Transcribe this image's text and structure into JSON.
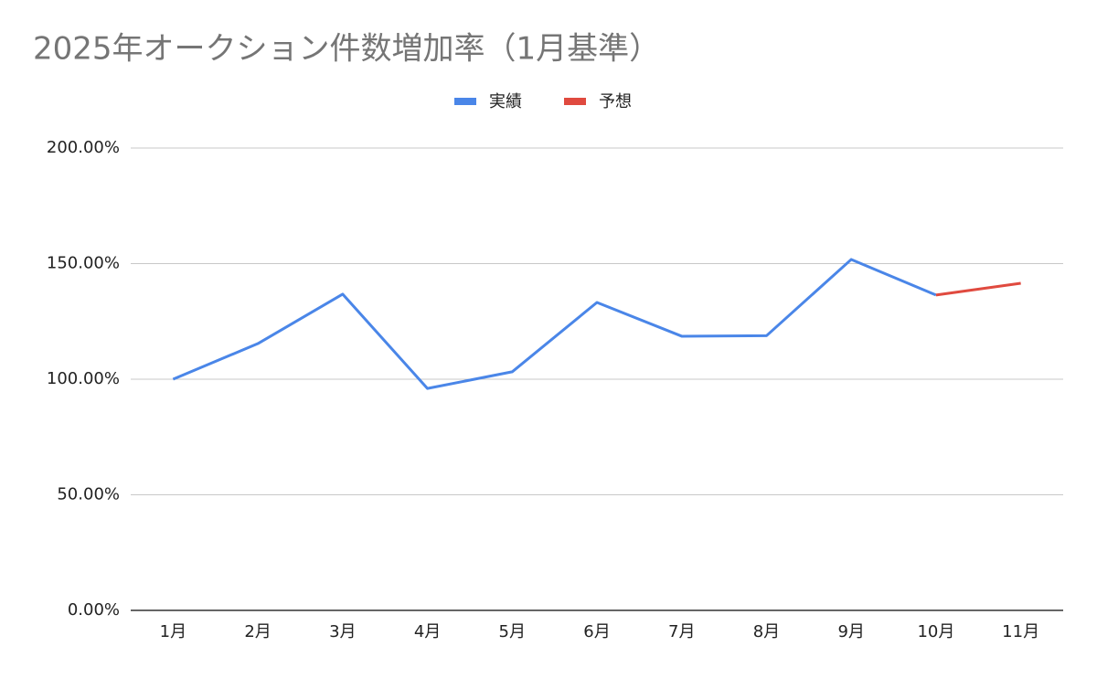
{
  "chart_data": {
    "type": "line",
    "title": "2025年オークション件数増加率（1月基準）",
    "categories": [
      "1月",
      "2月",
      "3月",
      "4月",
      "5月",
      "6月",
      "7月",
      "8月",
      "9月",
      "10月",
      "11月"
    ],
    "series": [
      {
        "name": "実績",
        "color": "#4a86e8",
        "values": [
          100,
          115.4,
          136.8,
          96.0,
          103.2,
          133.2,
          118.6,
          118.8,
          151.8,
          136.4,
          null
        ]
      },
      {
        "name": "予想",
        "color": "#e04a3f",
        "values": [
          null,
          null,
          null,
          null,
          null,
          null,
          null,
          null,
          null,
          136.4,
          141.5
        ]
      }
    ],
    "ylim": [
      0,
      200
    ],
    "yticks": [
      {
        "value": 0,
        "label": "0.00%"
      },
      {
        "value": 50,
        "label": "50.00%"
      },
      {
        "value": 100,
        "label": "100.00%"
      },
      {
        "value": 150,
        "label": "150.00%"
      },
      {
        "value": 200,
        "label": "200.00%"
      }
    ],
    "grid": true,
    "legend": "top"
  }
}
